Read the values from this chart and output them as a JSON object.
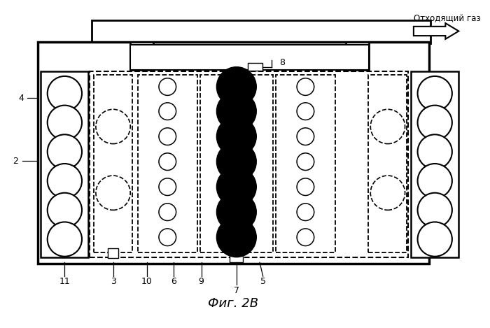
{
  "title": "Фиг. 2В",
  "gas_label": "Отходящий газ",
  "background": "#ffffff",
  "lc": "#000000",
  "fig_w": 7.0,
  "fig_h": 4.69,
  "dpi": 100
}
